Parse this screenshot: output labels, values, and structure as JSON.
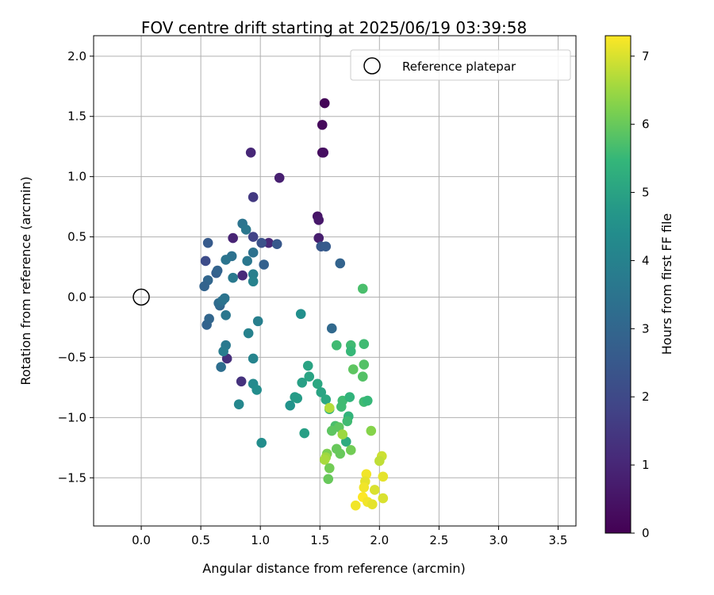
{
  "chart_data": {
    "type": "scatter",
    "title": "FOV centre drift starting at 2025/06/19 03:39:58",
    "xlabel": "Angular distance from reference (arcmin)",
    "ylabel": "Rotation from reference (arcmin)",
    "xlim": [
      -0.4,
      3.65
    ],
    "ylim": [
      -1.9,
      2.17
    ],
    "xticks": [
      0.0,
      0.5,
      1.0,
      1.5,
      2.0,
      2.5,
      3.0,
      3.5
    ],
    "xtick_labels": [
      "0.0",
      "0.5",
      "1.0",
      "1.5",
      "2.0",
      "2.5",
      "3.0",
      "3.5"
    ],
    "yticks": [
      -1.5,
      -1.0,
      -0.5,
      0.0,
      0.5,
      1.0,
      1.5,
      2.0
    ],
    "ytick_labels": [
      "−1.5",
      "−1.0",
      "−0.5",
      "0.0",
      "0.5",
      "1.0",
      "1.5",
      "2.0"
    ],
    "grid": true,
    "legend": {
      "position": "top-right",
      "entries": [
        "Reference platepar"
      ]
    },
    "reference_point": {
      "x": 0.0,
      "y": 0.0
    },
    "colorbar": {
      "label": "Hours from first FF file",
      "range": [
        0,
        7.3
      ],
      "ticks": [
        0,
        1,
        2,
        3,
        4,
        5,
        6,
        7
      ],
      "tick_labels": [
        "0",
        "1",
        "2",
        "3",
        "4",
        "5",
        "6",
        "7"
      ],
      "colormap": "viridis"
    },
    "points": [
      {
        "x": 1.54,
        "y": 1.61,
        "h": 0.1
      },
      {
        "x": 1.52,
        "y": 1.43,
        "h": 0.2
      },
      {
        "x": 1.52,
        "y": 1.2,
        "h": 0.3
      },
      {
        "x": 1.53,
        "y": 1.2,
        "h": 0.35
      },
      {
        "x": 1.48,
        "y": 0.67,
        "h": 0.5
      },
      {
        "x": 1.49,
        "y": 0.64,
        "h": 0.6
      },
      {
        "x": 1.49,
        "y": 0.49,
        "h": 0.75
      },
      {
        "x": 1.16,
        "y": 0.99,
        "h": 0.8
      },
      {
        "x": 0.77,
        "y": 0.49,
        "h": 0.9
      },
      {
        "x": 0.92,
        "y": 1.2,
        "h": 1.0
      },
      {
        "x": 1.07,
        "y": 0.45,
        "h": 1.05
      },
      {
        "x": 0.85,
        "y": 0.18,
        "h": 1.1
      },
      {
        "x": 0.72,
        "y": -0.51,
        "h": 1.2
      },
      {
        "x": 0.84,
        "y": -0.7,
        "h": 1.3
      },
      {
        "x": 0.94,
        "y": 0.83,
        "h": 1.5
      },
      {
        "x": 0.94,
        "y": 0.5,
        "h": 1.8
      },
      {
        "x": 0.56,
        "y": 0.45,
        "h": 2.6
      },
      {
        "x": 0.54,
        "y": 0.3,
        "h": 2.1
      },
      {
        "x": 1.01,
        "y": 0.45,
        "h": 2.3
      },
      {
        "x": 1.51,
        "y": 0.42,
        "h": 2.5
      },
      {
        "x": 1.55,
        "y": 0.42,
        "h": 2.6
      },
      {
        "x": 1.14,
        "y": 0.44,
        "h": 2.5
      },
      {
        "x": 1.03,
        "y": 0.27,
        "h": 2.8
      },
      {
        "x": 1.67,
        "y": 0.28,
        "h": 2.9
      },
      {
        "x": 0.63,
        "y": 0.2,
        "h": 2.7
      },
      {
        "x": 0.64,
        "y": 0.22,
        "h": 2.9
      },
      {
        "x": 0.56,
        "y": 0.14,
        "h": 3.0
      },
      {
        "x": 0.53,
        "y": 0.09,
        "h": 2.9
      },
      {
        "x": 0.55,
        "y": -0.23,
        "h": 2.9
      },
      {
        "x": 0.57,
        "y": -0.18,
        "h": 3.0
      },
      {
        "x": 0.66,
        "y": -0.07,
        "h": 3.0
      },
      {
        "x": 0.65,
        "y": -0.05,
        "h": 3.2
      },
      {
        "x": 0.68,
        "y": -0.03,
        "h": 3.4
      },
      {
        "x": 0.7,
        "y": -0.01,
        "h": 3.5
      },
      {
        "x": 0.71,
        "y": -0.15,
        "h": 3.6
      },
      {
        "x": 0.85,
        "y": 0.61,
        "h": 3.5
      },
      {
        "x": 0.88,
        "y": 0.56,
        "h": 3.6
      },
      {
        "x": 0.76,
        "y": 0.34,
        "h": 3.4
      },
      {
        "x": 0.71,
        "y": 0.31,
        "h": 3.5
      },
      {
        "x": 0.89,
        "y": 0.3,
        "h": 3.6
      },
      {
        "x": 0.94,
        "y": 0.37,
        "h": 3.4
      },
      {
        "x": 0.77,
        "y": 0.16,
        "h": 3.7
      },
      {
        "x": 0.94,
        "y": 0.19,
        "h": 3.9
      },
      {
        "x": 0.94,
        "y": 0.13,
        "h": 4.0
      },
      {
        "x": 1.6,
        "y": -0.26,
        "h": 3.1
      },
      {
        "x": 0.67,
        "y": -0.58,
        "h": 3.3
      },
      {
        "x": 0.71,
        "y": -0.4,
        "h": 3.7
      },
      {
        "x": 0.69,
        "y": -0.45,
        "h": 3.8
      },
      {
        "x": 0.98,
        "y": -0.2,
        "h": 3.9
      },
      {
        "x": 0.9,
        "y": -0.3,
        "h": 4.0
      },
      {
        "x": 0.94,
        "y": -0.51,
        "h": 4.1
      },
      {
        "x": 0.82,
        "y": -0.89,
        "h": 4.2
      },
      {
        "x": 0.94,
        "y": -0.72,
        "h": 4.3
      },
      {
        "x": 0.97,
        "y": -0.77,
        "h": 4.4
      },
      {
        "x": 1.01,
        "y": -1.21,
        "h": 4.4
      },
      {
        "x": 1.34,
        "y": -0.14,
        "h": 4.5
      },
      {
        "x": 1.25,
        "y": -0.9,
        "h": 4.6
      },
      {
        "x": 1.29,
        "y": -0.83,
        "h": 4.8
      },
      {
        "x": 1.31,
        "y": -0.84,
        "h": 4.8
      },
      {
        "x": 1.35,
        "y": -0.71,
        "h": 4.9
      },
      {
        "x": 1.37,
        "y": -1.13,
        "h": 4.9
      },
      {
        "x": 1.4,
        "y": -0.57,
        "h": 5.0
      },
      {
        "x": 1.41,
        "y": -0.66,
        "h": 5.0
      },
      {
        "x": 1.48,
        "y": -0.72,
        "h": 5.1
      },
      {
        "x": 1.51,
        "y": -0.79,
        "h": 5.0
      },
      {
        "x": 1.55,
        "y": -0.85,
        "h": 5.1
      },
      {
        "x": 1.58,
        "y": -0.93,
        "h": 5.3
      },
      {
        "x": 1.64,
        "y": -0.4,
        "h": 5.6
      },
      {
        "x": 1.69,
        "y": -0.86,
        "h": 5.6
      },
      {
        "x": 1.68,
        "y": -0.91,
        "h": 5.6
      },
      {
        "x": 1.72,
        "y": -1.2,
        "h": 5.2
      },
      {
        "x": 1.75,
        "y": -0.83,
        "h": 5.4
      },
      {
        "x": 1.76,
        "y": -0.4,
        "h": 5.6
      },
      {
        "x": 1.76,
        "y": -0.45,
        "h": 5.5
      },
      {
        "x": 1.74,
        "y": -0.99,
        "h": 5.4
      },
      {
        "x": 1.73,
        "y": -1.03,
        "h": 5.6
      },
      {
        "x": 1.86,
        "y": 0.07,
        "h": 5.7
      },
      {
        "x": 1.87,
        "y": -0.39,
        "h": 5.6
      },
      {
        "x": 1.87,
        "y": -0.56,
        "h": 5.8
      },
      {
        "x": 1.78,
        "y": -0.6,
        "h": 5.9
      },
      {
        "x": 1.86,
        "y": -0.66,
        "h": 5.8
      },
      {
        "x": 1.87,
        "y": -0.87,
        "h": 5.6
      },
      {
        "x": 1.9,
        "y": -0.86,
        "h": 5.5
      },
      {
        "x": 1.63,
        "y": -1.07,
        "h": 5.7
      },
      {
        "x": 1.66,
        "y": -1.08,
        "h": 5.9
      },
      {
        "x": 1.6,
        "y": -1.11,
        "h": 5.9
      },
      {
        "x": 1.93,
        "y": -1.11,
        "h": 6.3
      },
      {
        "x": 1.69,
        "y": -1.14,
        "h": 6.5
      },
      {
        "x": 1.64,
        "y": -1.26,
        "h": 6.0
      },
      {
        "x": 1.67,
        "y": -1.3,
        "h": 6.0
      },
      {
        "x": 1.76,
        "y": -1.27,
        "h": 6.1
      },
      {
        "x": 1.56,
        "y": -1.3,
        "h": 6.2
      },
      {
        "x": 1.55,
        "y": -1.33,
        "h": 6.5
      },
      {
        "x": 1.54,
        "y": -1.35,
        "h": 6.6
      },
      {
        "x": 1.58,
        "y": -1.42,
        "h": 6.1
      },
      {
        "x": 1.57,
        "y": -1.51,
        "h": 6.0
      },
      {
        "x": 1.58,
        "y": -0.92,
        "h": 6.7
      },
      {
        "x": 2.02,
        "y": -1.32,
        "h": 6.9
      },
      {
        "x": 2.0,
        "y": -1.36,
        "h": 6.8
      },
      {
        "x": 1.89,
        "y": -1.47,
        "h": 7.2
      },
      {
        "x": 1.88,
        "y": -1.53,
        "h": 7.1
      },
      {
        "x": 1.87,
        "y": -1.58,
        "h": 7.2
      },
      {
        "x": 1.96,
        "y": -1.6,
        "h": 7.0
      },
      {
        "x": 2.03,
        "y": -1.49,
        "h": 7.1
      },
      {
        "x": 1.86,
        "y": -1.66,
        "h": 7.3
      },
      {
        "x": 1.9,
        "y": -1.7,
        "h": 7.2
      },
      {
        "x": 1.8,
        "y": -1.73,
        "h": 7.2
      },
      {
        "x": 1.94,
        "y": -1.72,
        "h": 7.1
      },
      {
        "x": 2.03,
        "y": -1.67,
        "h": 7.0
      }
    ]
  }
}
